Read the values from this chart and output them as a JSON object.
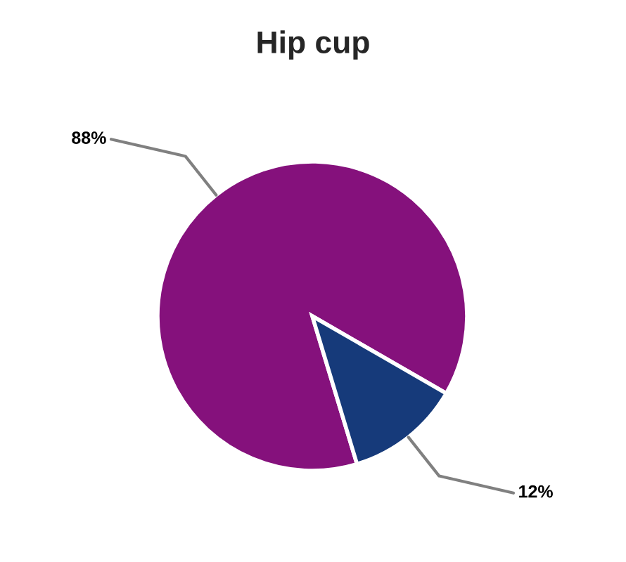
{
  "chart_data": {
    "type": "pie",
    "title": "Hip cup",
    "categories": [
      null,
      null
    ],
    "values": [
      88,
      12
    ],
    "colors": [
      "#85117c",
      "#163a7a"
    ],
    "value_labels": [
      "88%",
      "12%"
    ]
  }
}
